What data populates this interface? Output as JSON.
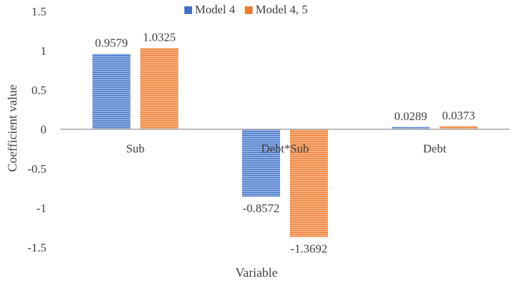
{
  "chart_data": {
    "type": "bar",
    "categories": [
      "Sub",
      "Debt*Sub",
      "Debt"
    ],
    "series": [
      {
        "name": "Model 4",
        "values": [
          0.9579,
          -0.8572,
          0.0289
        ],
        "labels": [
          "0.9579",
          "-0.8572",
          "0.0289"
        ],
        "color": "#4472C4"
      },
      {
        "name": "Model 4, 5",
        "values": [
          1.0325,
          -1.3692,
          0.0373
        ],
        "labels": [
          "1.0325",
          "-1.3692",
          "0.0373"
        ],
        "color": "#ED7D31"
      }
    ],
    "xlabel": "Variable",
    "ylabel": "Coefficient value",
    "ylim": [
      -1.5,
      1.5
    ],
    "yticks": [
      1.5,
      1,
      0.5,
      0,
      -0.5,
      -1,
      -1.5
    ],
    "ytick_labels": [
      "1.5",
      "1",
      "0.5",
      "0",
      "-0.5",
      "-1",
      "-1.5"
    ],
    "grid": false,
    "legend_position": "top-center",
    "bar_style": "horizontal-striped"
  }
}
